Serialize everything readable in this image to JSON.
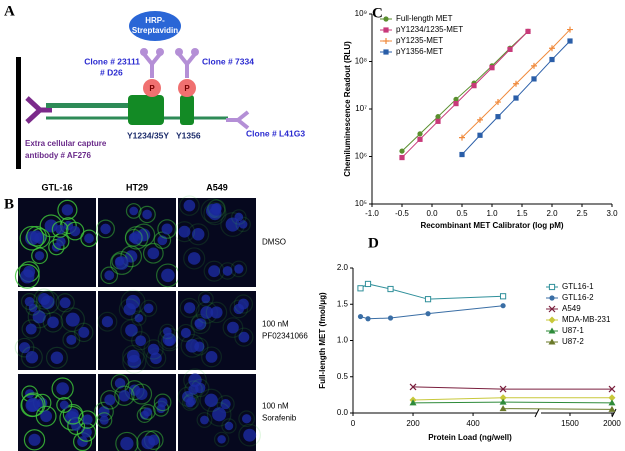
{
  "panels": [
    "A",
    "B",
    "C",
    "D"
  ],
  "diagram": {
    "hrp_line1": "HRP-",
    "hrp_line2": "Streptavidin",
    "clone_1": "Clone # 23111",
    "clone_1_sub": "# D26",
    "clone_2": "Clone # 7334",
    "phospho_1": "P",
    "phospho_2": "P",
    "site_1": "Y1234/35Y",
    "site_2": "Y1356",
    "clone_3": "Clone # L41G3",
    "capture_line1": "Extra cellular capture",
    "capture_line2": "antibody # AF276"
  },
  "micrographs": {
    "columns": [
      "GTL-16",
      "HT29",
      "A549"
    ],
    "rows": [
      [
        "DMSO"
      ],
      [
        "100 nM",
        "PF02341066"
      ],
      [
        "100 nM",
        "Sorafenib"
      ]
    ]
  },
  "chart_data": [
    {
      "type": "line",
      "yscale": "log",
      "x_label": "Recombinant MET Calibrator (log pM)",
      "y_label": "Chemiluminescence Readout (RLU)",
      "xlim": [
        -1,
        3
      ],
      "xticks": [
        {
          "value": -1,
          "label": "-1.0"
        },
        -0.5,
        {
          "value": 0,
          "label": "0.0"
        },
        0.5,
        {
          "value": 1,
          "label": "1.0"
        },
        1.5,
        {
          "value": 2,
          "label": "2.0"
        },
        2.5,
        {
          "value": 3,
          "label": "3.0"
        }
      ],
      "ylim": [
        100000,
        1000000000
      ],
      "yticks": [
        {
          "value": 100000,
          "label": "10⁵"
        },
        {
          "value": 1000000,
          "label": "10⁶"
        },
        {
          "value": 10000000,
          "label": "10⁷"
        },
        {
          "value": 100000000,
          "label": "10⁸"
        },
        {
          "value": 1000000000,
          "label": "10⁹"
        }
      ],
      "legend": "upper left",
      "series": [
        {
          "name": "Full-length MET",
          "color": "#5a8f2e",
          "marker": "circle",
          "x": [
            -0.5,
            -0.2,
            0.1,
            0.4,
            0.7,
            1.0,
            1.3,
            1.6
          ],
          "values": [
            1300000,
            3000000,
            6900000,
            16000000,
            35000000,
            81000000,
            190000000,
            430000000
          ]
        },
        {
          "name": "pY1234/1235-MET",
          "color": "#c8397a",
          "marker": "square",
          "x": [
            -0.5,
            -0.2,
            0.1,
            0.4,
            0.7,
            1.0,
            1.3,
            1.6
          ],
          "values": [
            950000,
            2300000,
            5500000,
            13000000,
            31000000,
            74000000,
            180000000,
            430000000
          ]
        },
        {
          "name": "pY1235-MET",
          "color": "#f08a3c",
          "marker": "plus",
          "x": [
            0.5,
            0.8,
            1.1,
            1.4,
            1.7,
            2.0,
            2.3
          ],
          "values": [
            2500000,
            5900000,
            14000000,
            34000000,
            81000000,
            190000000,
            470000000
          ]
        },
        {
          "name": "pY1356-MET",
          "color": "#2a5ea8",
          "marker": "square",
          "x": [
            0.5,
            0.8,
            1.1,
            1.4,
            1.7,
            2.0,
            2.3
          ],
          "values": [
            1100000,
            2800000,
            6900000,
            17000000,
            43000000,
            110000000,
            270000000
          ]
        }
      ]
    },
    {
      "type": "line",
      "x_label": "Protein Load (ng/well)",
      "y_label": "Full-length MET (fmol/μg)",
      "x_segments": [
        {
          "xlim": [
            0,
            613
          ],
          "xticks": [
            0,
            200,
            400
          ]
        },
        {
          "xlim": [
            1155,
            2024
          ],
          "xticks": [
            1500,
            2000
          ]
        }
      ],
      "ylim": [
        0,
        2
      ],
      "yticks": [
        {
          "value": 0,
          "label": "0.0"
        },
        0.5,
        {
          "value": 1,
          "label": "1.0"
        },
        1.5,
        {
          "value": 2,
          "label": "2.0"
        }
      ],
      "legend": "upper right",
      "series": [
        {
          "name": "GTL16-1",
          "color": "#2f8f9a",
          "marker": "square-open",
          "x": [
            25,
            50,
            125,
            250,
            500
          ],
          "values": [
            1.72,
            1.78,
            1.71,
            1.57,
            1.61
          ]
        },
        {
          "name": "GTL16-2",
          "color": "#3a6ea5",
          "marker": "circle",
          "x": [
            25,
            50,
            125,
            250,
            500
          ],
          "values": [
            1.33,
            1.3,
            1.31,
            1.37,
            1.48
          ]
        },
        {
          "name": "A549",
          "color": "#7a1f3d",
          "marker": "x",
          "x": [
            200,
            500,
            2000
          ],
          "values": [
            0.36,
            0.33,
            0.33
          ]
        },
        {
          "name": "MDA-MB-231",
          "color": "#c8c83a",
          "marker": "diamond",
          "x": [
            200,
            500,
            2000
          ],
          "values": [
            0.18,
            0.21,
            0.21
          ]
        },
        {
          "name": "U87-1",
          "color": "#2e8b3a",
          "marker": "triangle",
          "x": [
            200,
            500,
            2000
          ],
          "values": [
            0.14,
            0.15,
            0.14
          ]
        },
        {
          "name": "U87-2",
          "color": "#6b7a2a",
          "marker": "triangle",
          "x": [
            500,
            2000
          ],
          "values": [
            0.06,
            0.05
          ]
        }
      ]
    }
  ]
}
